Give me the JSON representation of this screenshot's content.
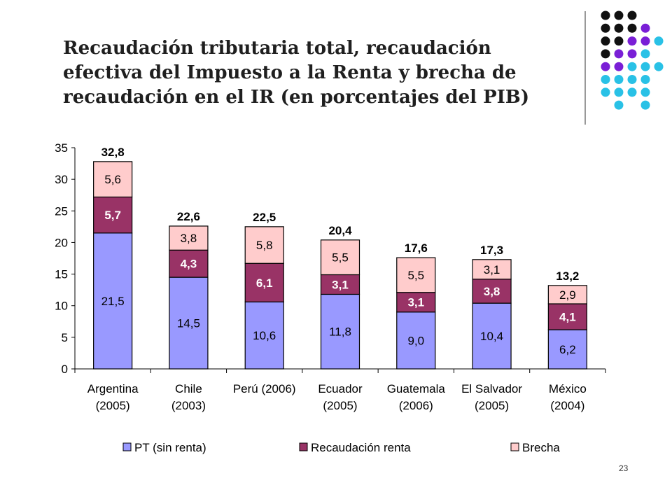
{
  "slide": {
    "title": "Recaudación tributaria total, recaudación efectiva del Impuesto a la Renta y brecha de recaudación en el IR (en porcentajes del PIB)",
    "page_number": "23"
  },
  "colors": {
    "pt": "#9999ff",
    "renta": "#993366",
    "brecha": "#ffcccc",
    "outline": "#000000",
    "dot_black": "#111111",
    "dot_purple": "#7a1fd6",
    "dot_cyan": "#29c1e6",
    "separator": "#555555"
  },
  "decor_dots": [
    [
      "black",
      "black",
      "black",
      null
    ],
    [
      "black",
      "black",
      "black",
      "purple"
    ],
    [
      "black",
      "black",
      "purple",
      "purple",
      "cyan"
    ],
    [
      "black",
      "purple",
      "purple",
      "cyan"
    ],
    [
      "purple",
      "purple",
      "cyan",
      "cyan",
      "cyan"
    ],
    [
      "cyan",
      "cyan",
      "cyan",
      "cyan"
    ],
    [
      "cyan",
      "cyan",
      "cyan",
      "cyan"
    ],
    [
      null,
      "cyan",
      null,
      "cyan"
    ]
  ],
  "chart_data": {
    "type": "bar",
    "stacked": true,
    "title": "",
    "xlabel": "",
    "ylabel": "",
    "ylim": [
      0,
      35
    ],
    "yticks": [
      0,
      5,
      10,
      15,
      20,
      25,
      30,
      35
    ],
    "categories": [
      [
        "Argentina",
        "(2005)"
      ],
      [
        "Chile",
        "(2003)"
      ],
      [
        "Perú (2006)",
        ""
      ],
      [
        "Ecuador",
        "(2005)"
      ],
      [
        "Guatemala",
        "(2006)"
      ],
      [
        "El Salvador",
        "(2005)"
      ],
      [
        "México",
        "(2004)"
      ]
    ],
    "series": [
      {
        "name": "PT (sin renta)",
        "key": "pt",
        "values": [
          21.5,
          14.5,
          10.6,
          11.8,
          9.0,
          10.4,
          6.2
        ],
        "labels": [
          "21,5",
          "14,5",
          "10,6",
          "11,8",
          "9,0",
          "10,4",
          "6,2"
        ]
      },
      {
        "name": "Recaudación renta",
        "key": "renta",
        "values": [
          5.7,
          4.3,
          6.1,
          3.1,
          3.1,
          3.8,
          4.1
        ],
        "labels": [
          "5,7",
          "4,3",
          "6,1",
          "3,1",
          "3,1",
          "3,8",
          "4,1"
        ]
      },
      {
        "name": "Brecha",
        "key": "brecha",
        "values": [
          5.6,
          3.8,
          5.8,
          5.5,
          5.5,
          3.1,
          2.9
        ],
        "labels": [
          "5,6",
          "3,8",
          "5,8",
          "5,5",
          "5,5",
          "3,1",
          "2,9"
        ]
      }
    ],
    "totals": [
      32.8,
      22.6,
      22.5,
      20.4,
      17.6,
      17.3,
      13.2
    ],
    "total_labels": [
      "32,8",
      "22,6",
      "22,5",
      "20,4",
      "17,6",
      "17,3",
      "13,2"
    ],
    "legend": {
      "position": "bottom"
    },
    "grid": false
  }
}
